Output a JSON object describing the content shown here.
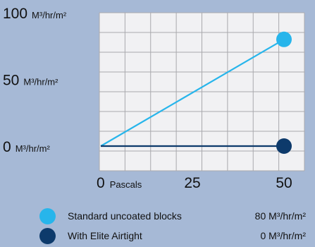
{
  "colors": {
    "background": "#a6b9d6",
    "plot_background": "#f1f1f3",
    "grid": "#a9a9ad",
    "series_standard": "#27b5eb",
    "series_elite": "#0d3a6b"
  },
  "chart_data": {
    "type": "line",
    "xlabel": "Pascals",
    "ylabel_unit": "M³/hr/m²",
    "xlim": [
      0,
      50
    ],
    "x_ticks": [
      {
        "value": 0,
        "label": "0",
        "unit": "Pascals"
      },
      {
        "value": 25,
        "label": "25",
        "unit": ""
      },
      {
        "value": 50,
        "label": "50",
        "unit": ""
      }
    ],
    "y_ticks": [
      {
        "value": 0,
        "label": "0",
        "unit": "M³/hr/m²"
      },
      {
        "value": 50,
        "label": "50",
        "unit": "M³/hr/m²"
      },
      {
        "value": 100,
        "label": "100",
        "unit": "M³/hr/m²"
      }
    ],
    "grid": true,
    "legend_placement": "bottom",
    "series": [
      {
        "name": "Standard uncoated blocks",
        "x": [
          0,
          50
        ],
        "y": [
          0,
          80
        ],
        "color": "#27b5eb",
        "legend_value": "80 M³/hr/m²"
      },
      {
        "name": "With Elite Airtight",
        "x": [
          0,
          50
        ],
        "y": [
          0,
          0
        ],
        "color": "#0d3a6b",
        "legend_value": "0 M³/hr/m²"
      }
    ]
  }
}
